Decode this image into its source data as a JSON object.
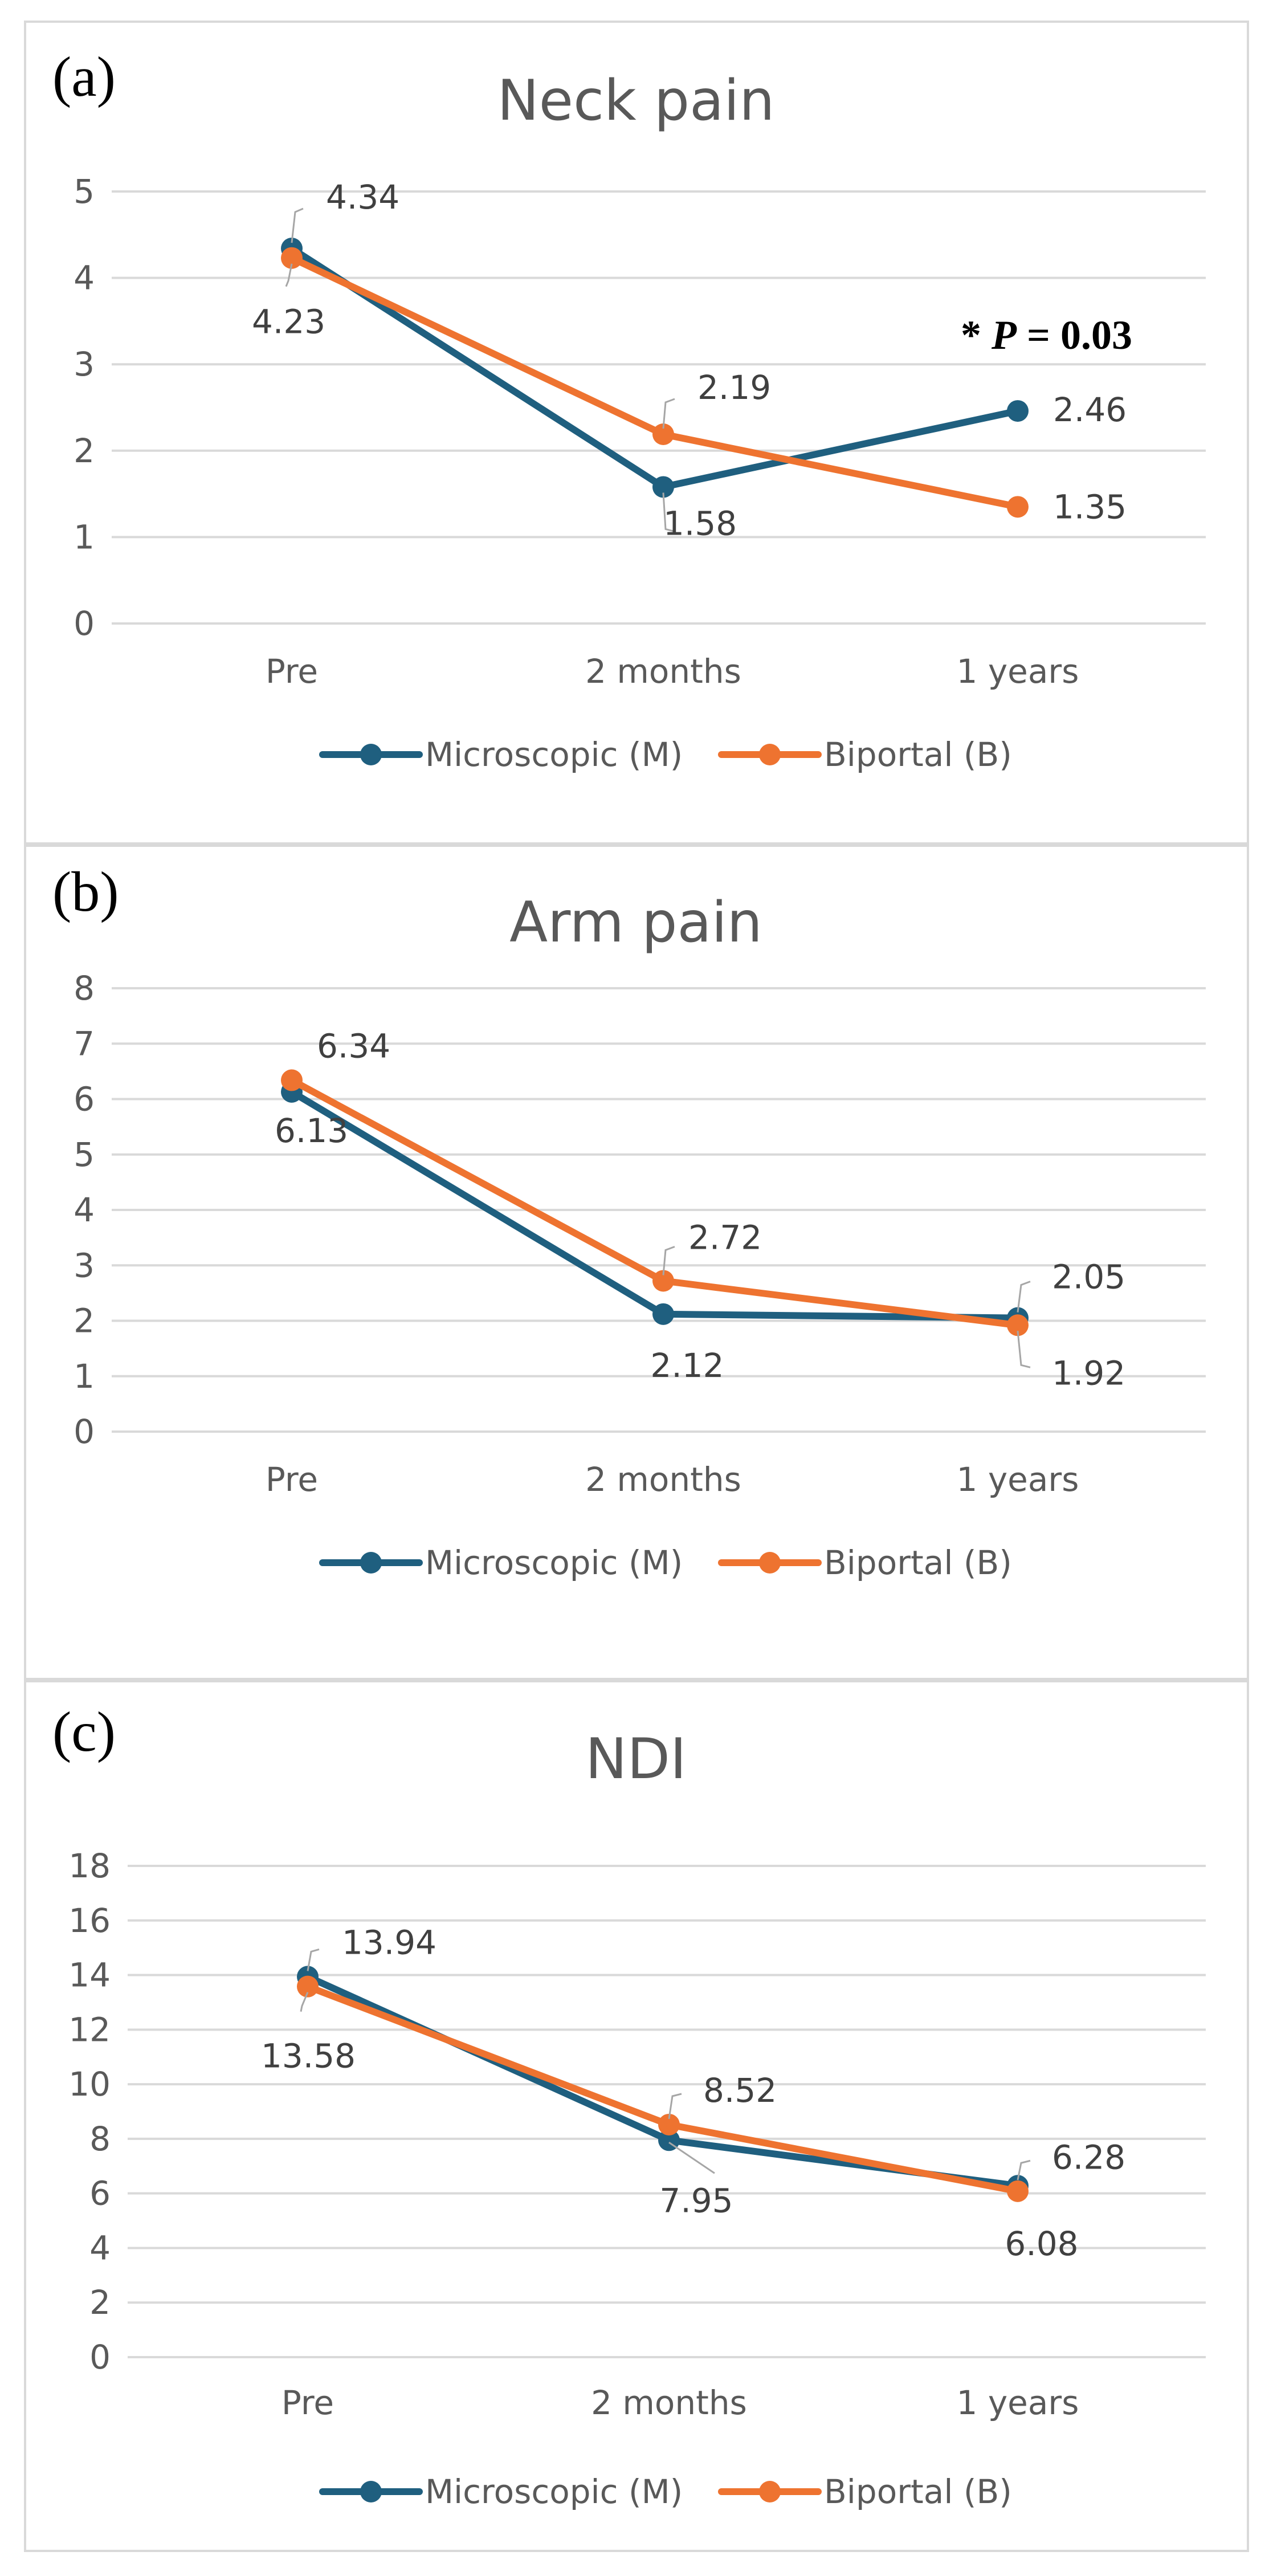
{
  "colors": {
    "microscopic": "#1f5f7f",
    "biportal": "#ee7330",
    "grid": "#d9d9d9",
    "text": "#595959"
  },
  "chart_data": [
    {
      "panel_label": "(a)",
      "type": "line",
      "title": "Neck pain",
      "categories": [
        "Pre",
        "2 months",
        "1 years"
      ],
      "ylim": [
        0,
        5
      ],
      "yticks": [
        "0",
        "1",
        "2",
        "3",
        "4",
        "5"
      ],
      "series": [
        {
          "name": "Microscopic (M)",
          "values": [
            4.34,
            1.58,
            2.46
          ],
          "labels": [
            "4.34",
            "1.58",
            "2.46"
          ]
        },
        {
          "name": "Biportal (B)",
          "values": [
            4.23,
            2.19,
            1.35
          ],
          "labels": [
            "4.23",
            "2.19",
            "1.35"
          ]
        }
      ],
      "annotation": {
        "star": "*",
        "p": "P",
        "rest": " = 0.03"
      },
      "legend": [
        "Microscopic (M)",
        "Biportal (B)"
      ]
    },
    {
      "panel_label": "(b)",
      "type": "line",
      "title": "Arm pain",
      "categories": [
        "Pre",
        "2 months",
        "1 years"
      ],
      "ylim": [
        0,
        8
      ],
      "yticks": [
        "0",
        "1",
        "2",
        "3",
        "4",
        "5",
        "6",
        "7",
        "8"
      ],
      "series": [
        {
          "name": "Microscopic (M)",
          "values": [
            6.13,
            2.12,
            2.05
          ],
          "labels": [
            "6.13",
            "2.12",
            "2.05"
          ]
        },
        {
          "name": "Biportal (B)",
          "values": [
            6.34,
            2.72,
            1.92
          ],
          "labels": [
            "6.34",
            "2.72",
            "1.92"
          ]
        }
      ],
      "legend": [
        "Microscopic (M)",
        "Biportal (B)"
      ]
    },
    {
      "panel_label": "(c)",
      "type": "line",
      "title": "NDI",
      "categories": [
        "Pre",
        "2 months",
        "1 years"
      ],
      "ylim": [
        0,
        18
      ],
      "yticks": [
        "0",
        "2",
        "4",
        "6",
        "8",
        "10",
        "12",
        "14",
        "16",
        "18"
      ],
      "series": [
        {
          "name": "Microscopic (M)",
          "values": [
            13.94,
            7.95,
            6.28
          ],
          "labels": [
            "13.94",
            "7.95",
            "6.28"
          ]
        },
        {
          "name": "Biportal (B)",
          "values": [
            13.58,
            8.52,
            6.08
          ],
          "labels": [
            "13.58",
            "8.52",
            "6.08"
          ]
        }
      ],
      "legend": [
        "Microscopic (M)",
        "Biportal (B)"
      ]
    }
  ]
}
